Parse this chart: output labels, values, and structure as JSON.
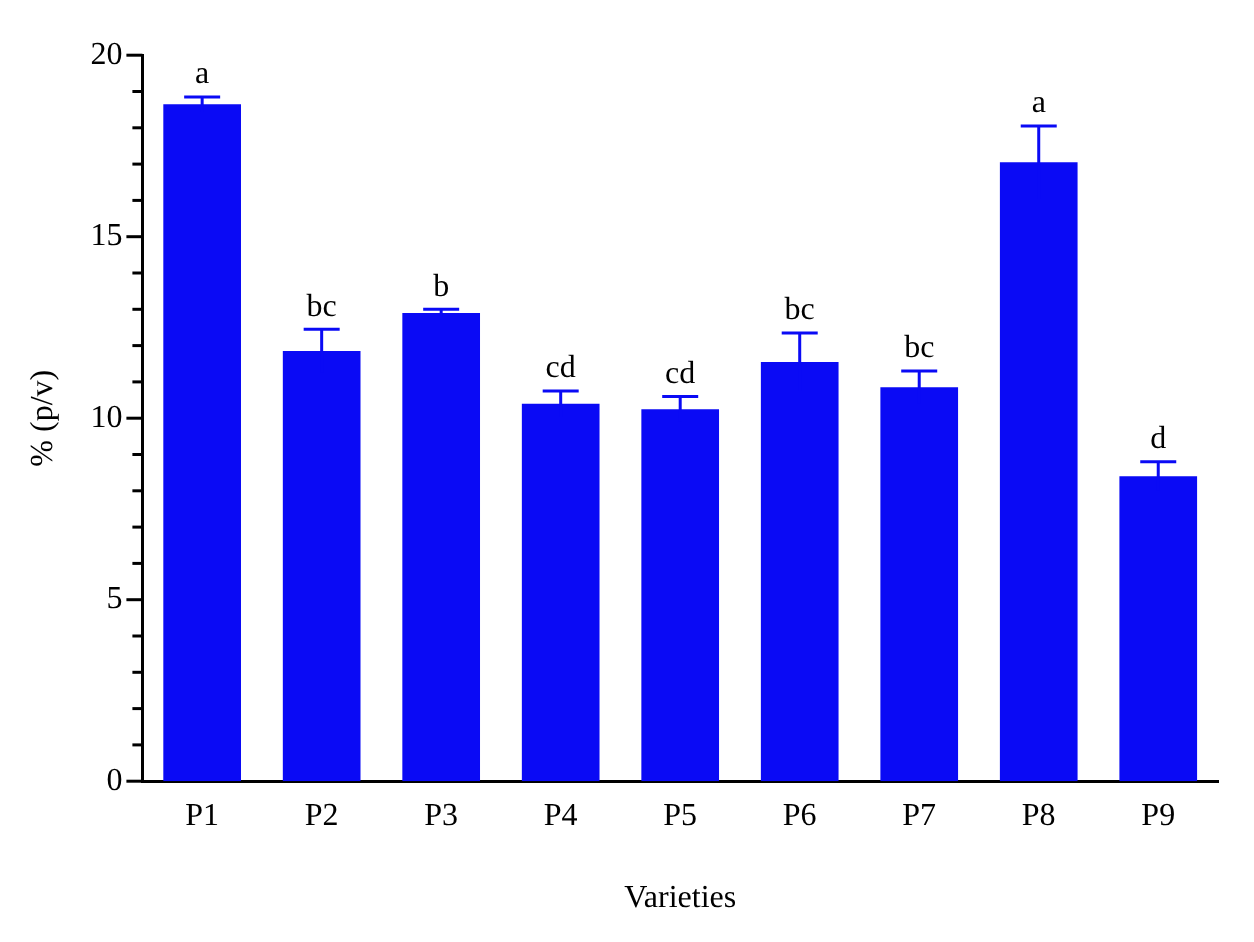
{
  "chart_data": {
    "type": "bar",
    "xlabel": "Varieties",
    "ylabel": "% (p/v)",
    "categories": [
      "P1",
      "P2",
      "P3",
      "P4",
      "P5",
      "P6",
      "P7",
      "P8",
      "P9"
    ],
    "values": [
      18.65,
      11.85,
      12.9,
      10.4,
      10.25,
      11.55,
      10.85,
      17.05,
      8.4
    ],
    "errors": [
      0.2,
      0.6,
      0.1,
      0.35,
      0.35,
      0.8,
      0.45,
      1.0,
      0.4
    ],
    "color": "#0a0af5",
    "ylim": [
      0,
      20
    ],
    "yticks": [
      0,
      {
        "value": 1,
        "label": null
      },
      {
        "value": 2,
        "label": null
      },
      {
        "value": 3,
        "label": null
      },
      {
        "value": 4,
        "label": null
      },
      5,
      {
        "value": 6,
        "label": null
      },
      {
        "value": 7,
        "label": null
      },
      {
        "value": 8,
        "label": null
      },
      {
        "value": 9,
        "label": null
      },
      10,
      {
        "value": 11,
        "label": null
      },
      {
        "value": 12,
        "label": null
      },
      {
        "value": 13,
        "label": null
      },
      {
        "value": 14,
        "label": null
      },
      15,
      {
        "value": 16,
        "label": null
      },
      {
        "value": 17,
        "label": null
      },
      {
        "value": 18,
        "label": null
      },
      {
        "value": 19,
        "label": null
      },
      20
    ],
    "annotations": [
      {
        "text": "a",
        "x": "P1",
        "y": 18.85
      },
      {
        "text": "bc",
        "x": "P2",
        "y": 12.45
      },
      {
        "text": "b",
        "x": "P3",
        "y": 13.0
      },
      {
        "text": "cd",
        "x": "P4",
        "y": 10.75
      },
      {
        "text": "cd",
        "x": "P5",
        "y": 10.6
      },
      {
        "text": "bc",
        "x": "P6",
        "y": 12.35
      },
      {
        "text": "bc",
        "x": "P7",
        "y": 11.3
      },
      {
        "text": "a",
        "x": "P8",
        "y": 18.05
      },
      {
        "text": "d",
        "x": "P9",
        "y": 8.8
      }
    ],
    "grid": false,
    "legend": false
  }
}
